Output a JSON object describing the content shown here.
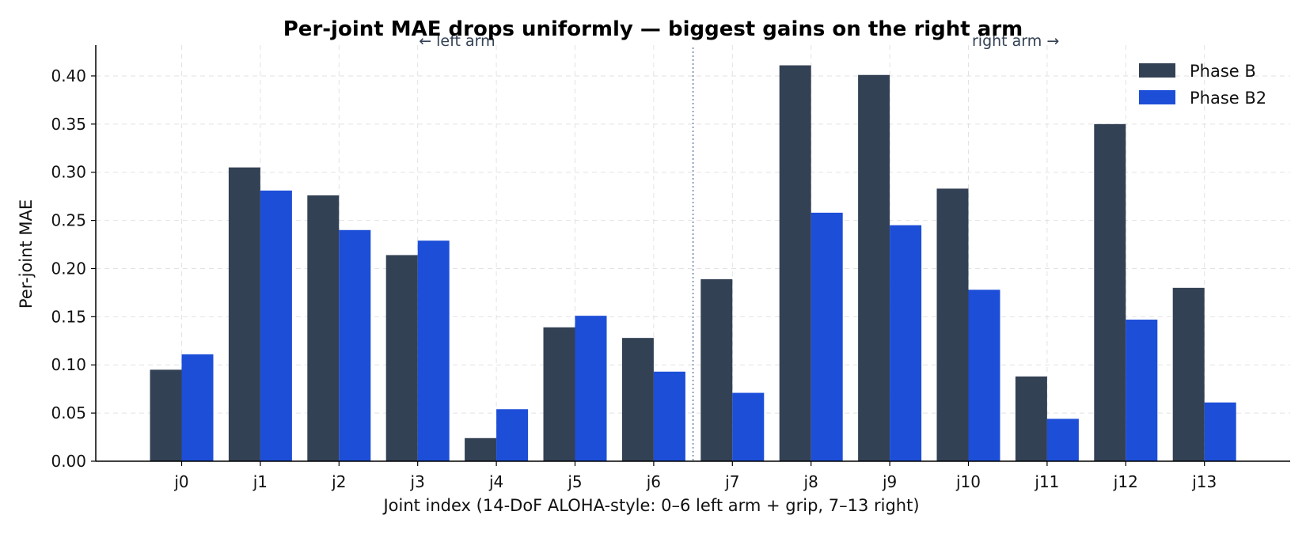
{
  "chart_data": {
    "type": "bar",
    "title": "Per-joint MAE drops uniformly — biggest gains on the right arm",
    "xlabel": "Joint index (14-DoF ALOHA-style: 0–6 left arm + grip, 7–13 right)",
    "ylabel": "Per-joint MAE",
    "categories": [
      "j0",
      "j1",
      "j2",
      "j3",
      "j4",
      "j5",
      "j6",
      "j7",
      "j8",
      "j9",
      "j10",
      "j11",
      "j12",
      "j13"
    ],
    "series": [
      {
        "name": "Phase B",
        "color": "#334155",
        "values": [
          0.095,
          0.305,
          0.276,
          0.214,
          0.024,
          0.139,
          0.128,
          0.189,
          0.411,
          0.401,
          0.283,
          0.088,
          0.35,
          0.18
        ]
      },
      {
        "name": "Phase B2",
        "color": "#1d4ed8",
        "values": [
          0.111,
          0.281,
          0.24,
          0.229,
          0.054,
          0.151,
          0.093,
          0.071,
          0.258,
          0.245,
          0.178,
          0.044,
          0.147,
          0.061
        ]
      }
    ],
    "ylim": [
      0,
      0.432
    ],
    "yticks": [
      "0.00",
      "0.05",
      "0.10",
      "0.15",
      "0.20",
      "0.25",
      "0.30",
      "0.35",
      "0.40"
    ],
    "annotations": {
      "left": "← left arm",
      "right": "right arm →"
    },
    "arm_divider_after": "j6",
    "grid": true,
    "legend_position": "top-right"
  }
}
